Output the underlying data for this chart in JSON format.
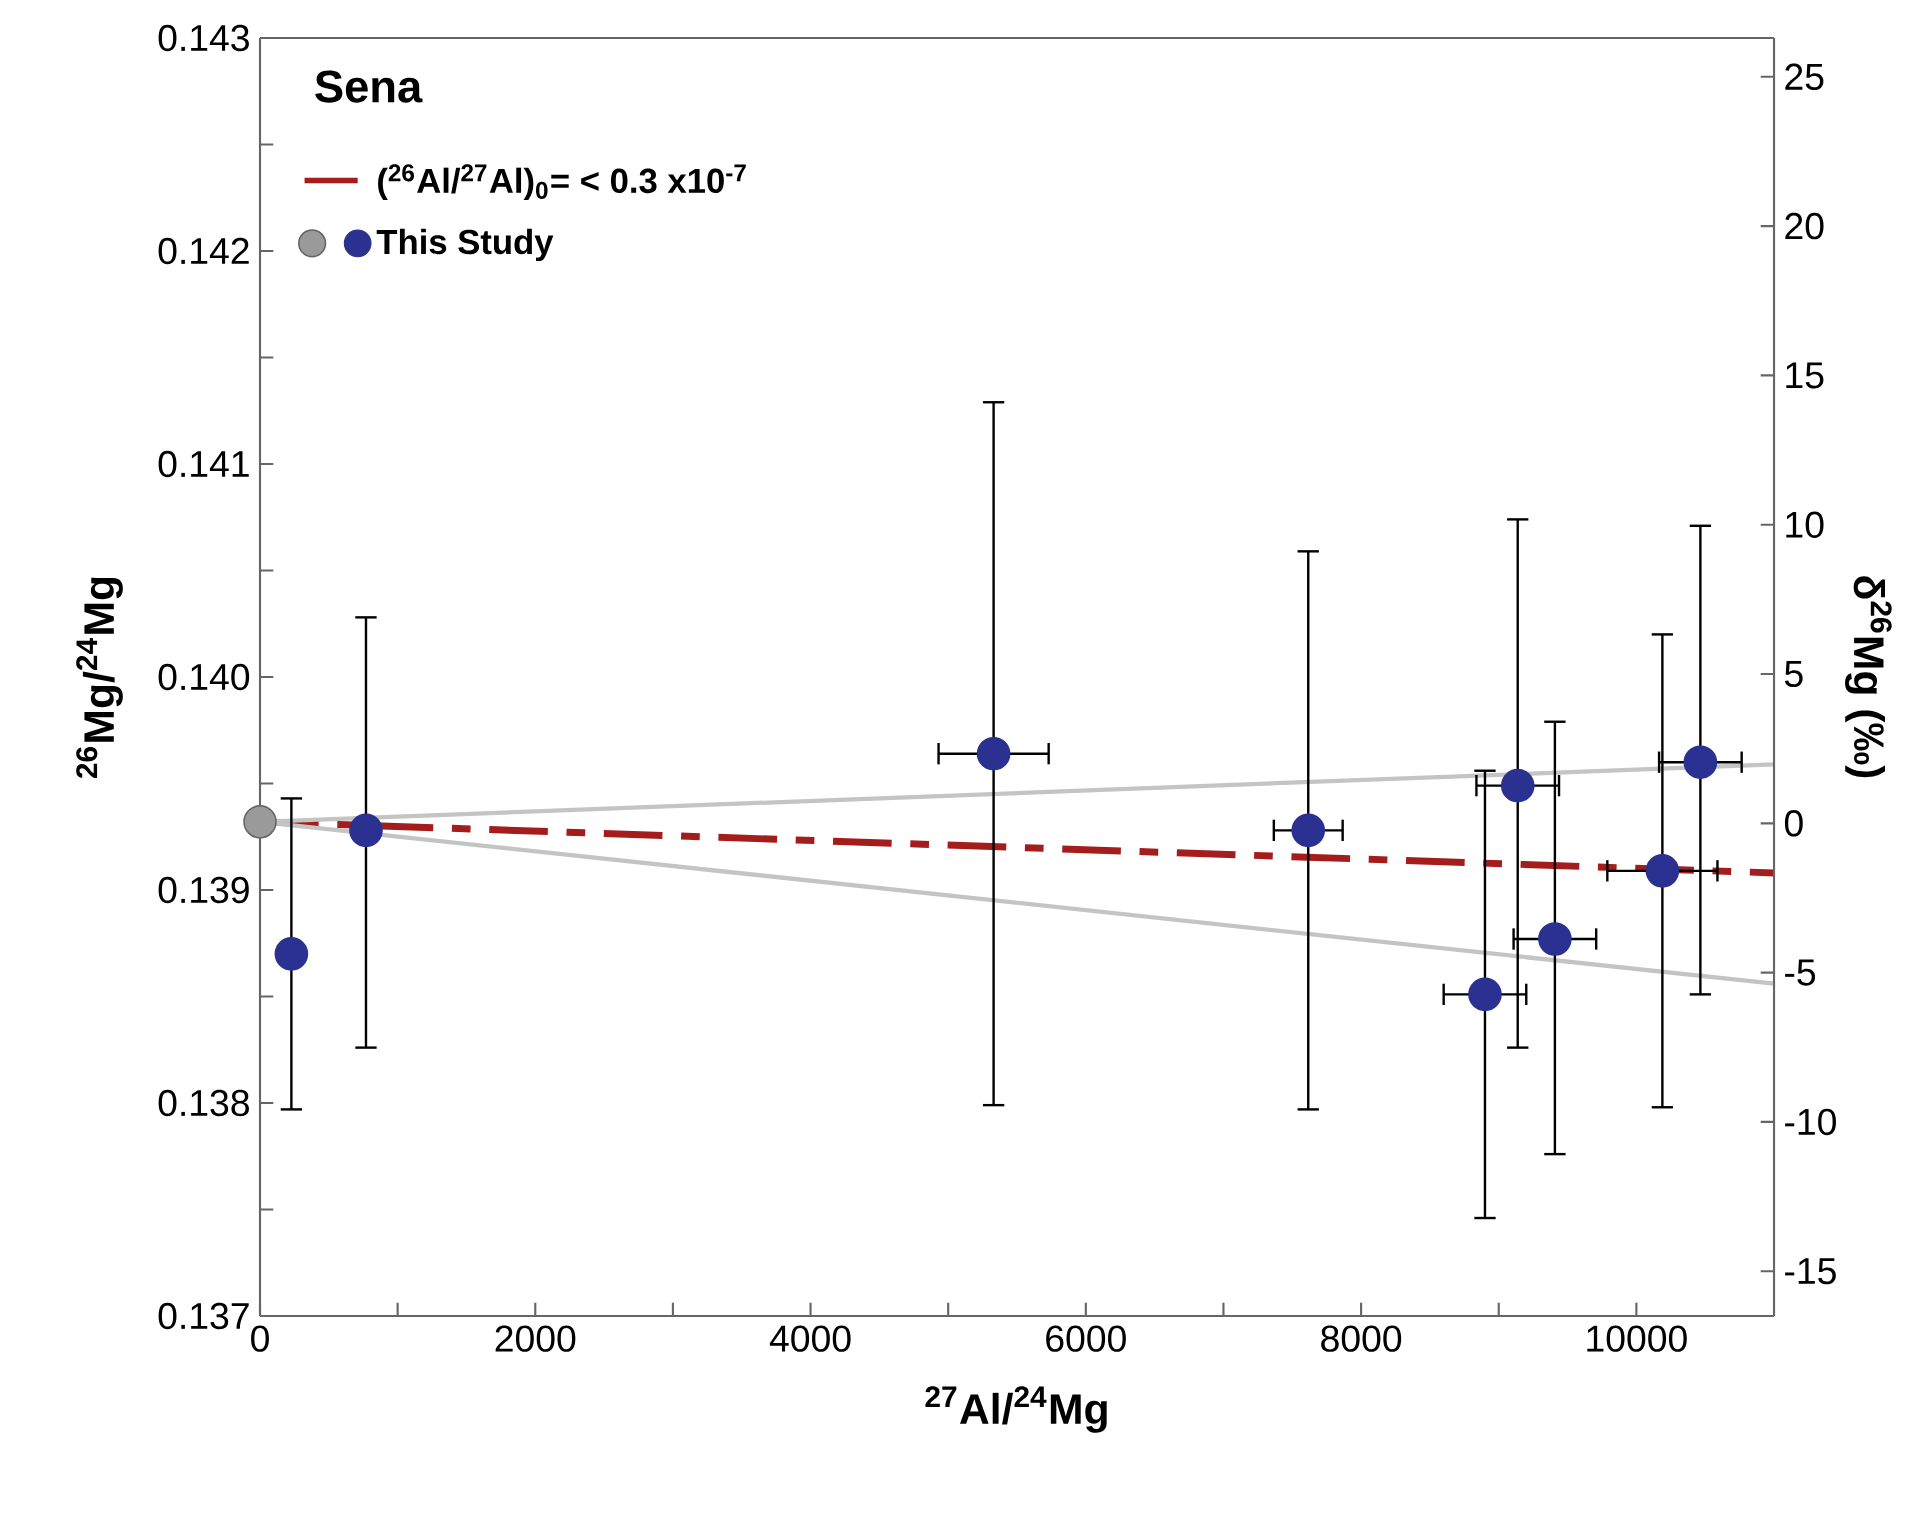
{
  "chart_data": {
    "type": "scatter",
    "legend_title": "Sena",
    "legend": "top left",
    "xlabel": "$^{27}$Al/$^{24}$Mg",
    "ylabel": "$^{26}$Mg/$^{24}$Mg",
    "y2label": "δ$^{26}$Mg (‰)",
    "xlim": [
      0,
      11000
    ],
    "xticks": [
      0,
      {
        "value": 1000,
        "label": null
      },
      2000,
      {
        "value": 3000,
        "label": null
      },
      4000,
      {
        "value": 5000,
        "label": null
      },
      6000,
      {
        "value": 7000,
        "label": null
      },
      8000,
      {
        "value": 9000,
        "label": null
      },
      10000
    ],
    "ylim": [
      0.137,
      0.143
    ],
    "yticks": [
      0.137,
      {
        "value": 0.1375,
        "label": null
      },
      0.138,
      {
        "value": 0.1385,
        "label": null
      },
      0.139,
      {
        "value": 0.1395,
        "label": null
      },
      {
        "value": 0.14,
        "label": "0.140"
      },
      {
        "value": 0.1405,
        "label": null
      },
      0.141,
      {
        "value": 0.1415,
        "label": null
      },
      0.142,
      {
        "value": 0.1425,
        "label": null
      },
      0.143
    ],
    "y2lim": [
      -16.5,
      26.3
    ],
    "y2ticks": [
      -15,
      -10,
      -5,
      0,
      5,
      10,
      15,
      20,
      25
    ],
    "series": [
      {
        "name": "($^{26}$Al/$^{27}$Al)$_{0}$= < 0.3 x10$^{-7}$",
        "type": "line",
        "color": "#a51c1c",
        "line_style": "dashed",
        "x": [
          0,
          11000
        ],
        "values": [
          0.13932,
          0.13908
        ]
      },
      {
        "type": "line",
        "color": "#c4c4c4",
        "line_style": "solid",
        "x": [
          0,
          11000
        ],
        "values": [
          0.13932,
          0.13959
        ]
      },
      {
        "type": "line",
        "color": "#c4c4c4",
        "line_style": "solid",
        "x": [
          0,
          11000
        ],
        "values": [
          0.13932,
          0.13856
        ]
      },
      {
        "name": "This Study",
        "color": "#2b3190",
        "marker": "circle",
        "x": [
          228,
          770,
          5330,
          7616,
          8900,
          9138,
          9408,
          10189,
          10465
        ],
        "values": [
          0.1387,
          0.13928,
          0.13964,
          0.13928,
          0.13851,
          0.13949,
          0.13877,
          0.13909,
          0.1396
        ],
        "errors": [
          [
            0.13797,
            0.13943
          ],
          [
            0.13826,
            0.14028
          ],
          [
            0.13799,
            0.14129
          ],
          [
            0.13797,
            0.14059
          ],
          [
            0.13746,
            0.13956
          ],
          [
            0.13826,
            0.14074
          ],
          [
            0.13776,
            0.13979
          ],
          [
            0.13798,
            0.1402
          ],
          [
            0.13851,
            0.14071
          ]
        ],
        "xerrors": [
          null,
          null,
          400,
          250,
          300,
          300,
          300,
          400,
          300
        ]
      },
      {
        "color": "#9a9a9a",
        "marker": "circle",
        "x": [
          0
        ],
        "values": [
          0.13932
        ]
      }
    ]
  }
}
